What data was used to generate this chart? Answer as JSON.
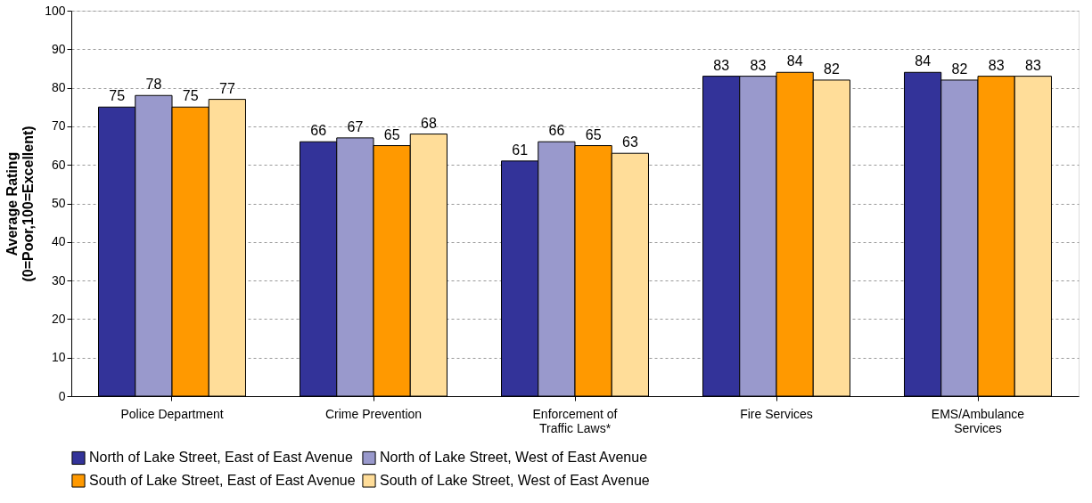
{
  "chart_data": {
    "type": "bar",
    "categories": [
      "Police Department",
      "Crime Prevention",
      "Enforcement of Traffic Laws*",
      "Fire Services",
      "EMS/Ambulance Services"
    ],
    "ylabel": "Average Rating\n(0=Poor,100=Excellent)",
    "series": [
      {
        "name": "North of Lake Street, East of East Avenue",
        "color": "#333399",
        "values": [
          75,
          66,
          61,
          83,
          84
        ]
      },
      {
        "name": "North of Lake Street, West of East Avenue",
        "color": "#9999cc",
        "values": [
          78,
          67,
          66,
          83,
          82
        ]
      },
      {
        "name": "South of Lake Street, East of East Avenue",
        "color": "#ff9900",
        "values": [
          75,
          65,
          65,
          84,
          83
        ]
      },
      {
        "name": "South of Lake Street, West of East Avenue",
        "color": "#ffdd99",
        "values": [
          77,
          68,
          63,
          82,
          83
        ]
      }
    ],
    "ylim": [
      0,
      100
    ],
    "yticks": [
      0,
      10,
      20,
      30,
      40,
      50,
      60,
      70,
      80,
      90,
      100
    ],
    "grid": "y",
    "legend": "bottom",
    "data_labels": true
  }
}
